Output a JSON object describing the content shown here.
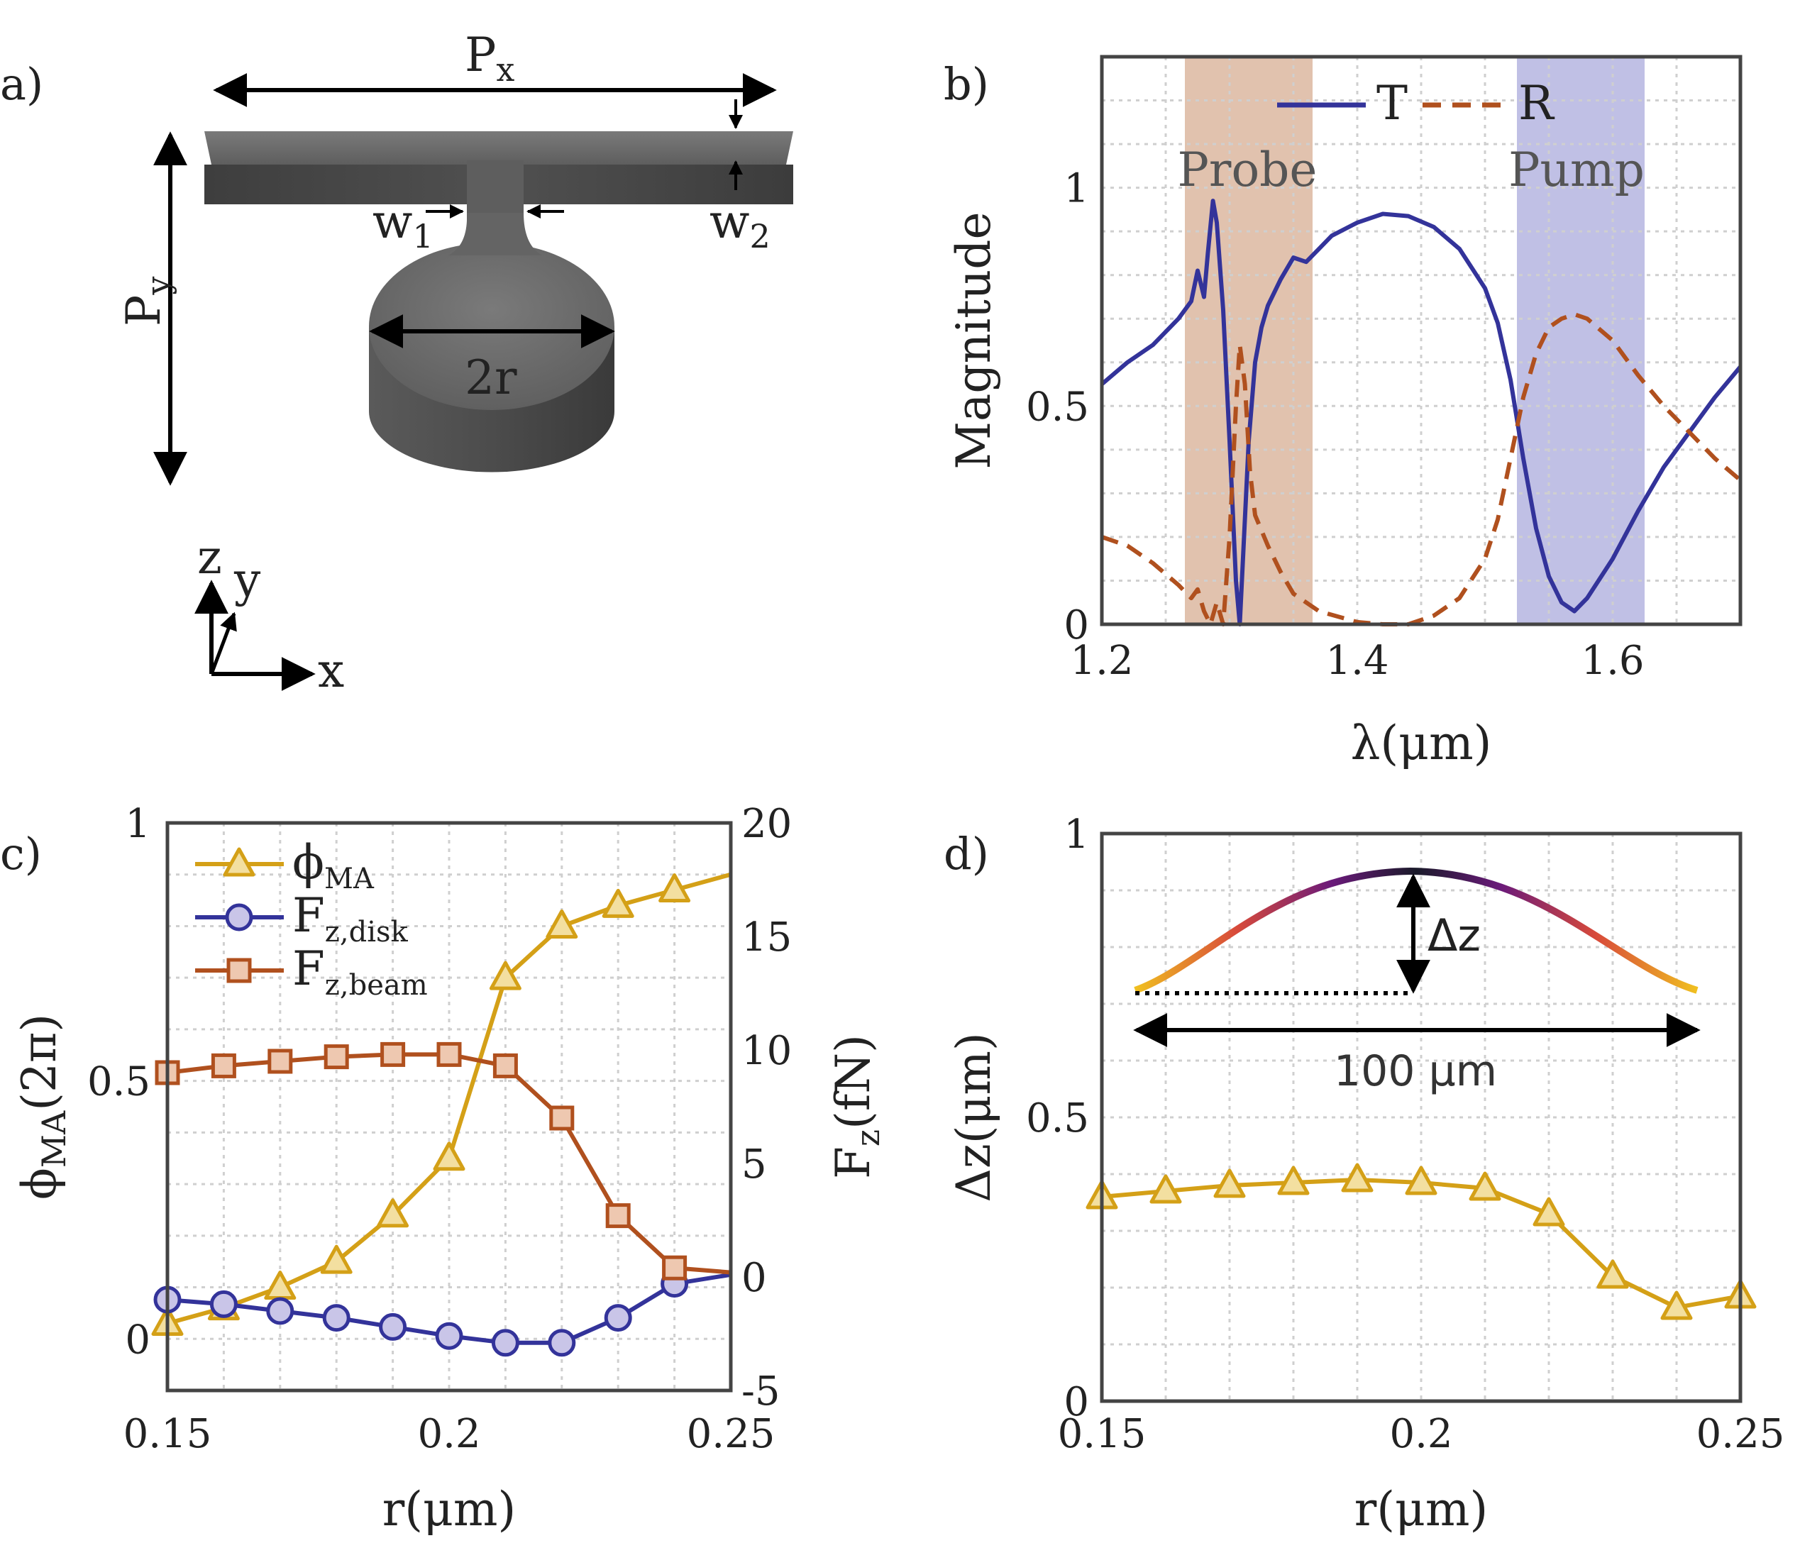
{
  "panel_a": {
    "label": "a)",
    "dims": {
      "px": "P",
      "px_sub": "x",
      "py": "P",
      "py_sub": "y",
      "w1": "w",
      "w1_sub": "1",
      "w2": "w",
      "w2_sub": "2",
      "diameter": "2r"
    },
    "axes": {
      "x": "x",
      "y": "y",
      "z": "z"
    },
    "colors": {
      "beam_top": "#6d6d6d",
      "beam_front": "#4a4a4a",
      "disk_top": "#6a6a6a",
      "disk_side": "#515151"
    }
  },
  "chart_data": [
    {
      "panel": "b)",
      "type": "line",
      "xlabel": "λ(μm)",
      "ylabel": "Magnitude",
      "xlim": [
        1.2,
        1.7
      ],
      "ylim": [
        0,
        1.3
      ],
      "xticks": [
        1.2,
        1.4,
        1.6
      ],
      "xtick_labels": [
        "1.2",
        "1.4",
        "1.6"
      ],
      "yticks": [
        0,
        0.5,
        1
      ],
      "ytick_labels": [
        "0",
        "0.5",
        "1"
      ],
      "grid": true,
      "legend_placement": "top-right",
      "bands": [
        {
          "name": "Probe",
          "x0": 1.265,
          "x1": 1.365,
          "color": "#c98f6c"
        },
        {
          "name": "Pump",
          "x0": 1.525,
          "x1": 1.625,
          "color": "#8c8cd0"
        }
      ],
      "series": [
        {
          "name": "T",
          "color": "#33339a",
          "style": "solid",
          "x": [
            1.2,
            1.22,
            1.24,
            1.25,
            1.26,
            1.27,
            1.275,
            1.28,
            1.283,
            1.287,
            1.29,
            1.295,
            1.3,
            1.305,
            1.308,
            1.311,
            1.315,
            1.32,
            1.325,
            1.33,
            1.34,
            1.35,
            1.36,
            1.37,
            1.38,
            1.4,
            1.42,
            1.44,
            1.46,
            1.48,
            1.5,
            1.51,
            1.52,
            1.53,
            1.54,
            1.55,
            1.56,
            1.57,
            1.58,
            1.6,
            1.62,
            1.64,
            1.66,
            1.68,
            1.7
          ],
          "y": [
            0.55,
            0.6,
            0.64,
            0.67,
            0.7,
            0.74,
            0.81,
            0.75,
            0.85,
            0.97,
            0.92,
            0.72,
            0.42,
            0.1,
            0.0,
            0.18,
            0.42,
            0.6,
            0.68,
            0.73,
            0.79,
            0.84,
            0.83,
            0.86,
            0.89,
            0.92,
            0.94,
            0.935,
            0.91,
            0.86,
            0.77,
            0.69,
            0.56,
            0.38,
            0.22,
            0.11,
            0.05,
            0.03,
            0.06,
            0.15,
            0.26,
            0.36,
            0.44,
            0.52,
            0.59
          ]
        },
        {
          "name": "R",
          "color": "#b0501e",
          "style": "dashed",
          "x": [
            1.2,
            1.22,
            1.24,
            1.26,
            1.27,
            1.275,
            1.28,
            1.285,
            1.29,
            1.295,
            1.3,
            1.305,
            1.308,
            1.312,
            1.316,
            1.32,
            1.33,
            1.34,
            1.35,
            1.37,
            1.4,
            1.42,
            1.44,
            1.46,
            1.48,
            1.5,
            1.51,
            1.52,
            1.53,
            1.54,
            1.55,
            1.56,
            1.57,
            1.58,
            1.6,
            1.62,
            1.64,
            1.66,
            1.68,
            1.7
          ],
          "y": [
            0.2,
            0.18,
            0.14,
            0.09,
            0.06,
            0.08,
            0.03,
            0.0,
            0.05,
            0.0,
            0.2,
            0.5,
            0.64,
            0.55,
            0.35,
            0.25,
            0.18,
            0.12,
            0.07,
            0.03,
            0.005,
            0.0,
            0.0,
            0.02,
            0.06,
            0.15,
            0.24,
            0.38,
            0.52,
            0.62,
            0.68,
            0.7,
            0.71,
            0.7,
            0.65,
            0.57,
            0.5,
            0.44,
            0.38,
            0.33
          ]
        }
      ]
    },
    {
      "panel": "c)",
      "type": "line",
      "xlabel": "r(μm)",
      "ylabel": "ϕMA(2π)",
      "ylabel_right": "Fz(fN)",
      "xlim": [
        0.15,
        0.25
      ],
      "ylim": [
        -0.1,
        1
      ],
      "ylim_right": [
        -5,
        20
      ],
      "xticks": [
        0.15,
        0.2,
        0.25
      ],
      "xtick_labels": [
        "0.15",
        "0.2",
        "0.25"
      ],
      "yticks": [
        0,
        0.5,
        1
      ],
      "ytick_labels": [
        "0",
        "0.5",
        "1"
      ],
      "yticks_right": [
        -5,
        0,
        5,
        10,
        15,
        20
      ],
      "ytick_labels_right": [
        "-5",
        "0",
        "5",
        "10",
        "15",
        "20"
      ],
      "grid": true,
      "legend_placement": "top-left",
      "categories": [
        0.15,
        0.16,
        0.17,
        0.18,
        0.19,
        0.2,
        0.21,
        0.22,
        0.23,
        0.24,
        0.25
      ],
      "series": [
        {
          "name": "ϕ",
          "sub": "MA",
          "axis": "left",
          "marker": "triangle",
          "color": "#d4a017",
          "fill": "#f3dfa0",
          "values": [
            0.03,
            0.06,
            0.1,
            0.15,
            0.24,
            0.35,
            0.7,
            0.8,
            0.84,
            0.87,
            0.9
          ],
          "markers": 10
        },
        {
          "name": "F",
          "sub": "z,disk",
          "axis": "right",
          "marker": "circle",
          "color": "#33339a",
          "fill": "#c9c5e8",
          "values": [
            -1.0,
            -1.2,
            -1.5,
            -1.8,
            -2.2,
            -2.6,
            -2.9,
            -2.9,
            -1.8,
            -0.3,
            0.1
          ],
          "markers": 10
        },
        {
          "name": "F",
          "sub": "z,beam",
          "axis": "right",
          "marker": "square",
          "color": "#b0501e",
          "fill": "#eec8b0",
          "values": [
            9.0,
            9.3,
            9.5,
            9.7,
            9.8,
            9.8,
            9.3,
            7.0,
            2.7,
            0.4,
            0.2
          ],
          "markers": 10
        }
      ]
    },
    {
      "panel": "d)",
      "type": "line",
      "xlabel": "r(μm)",
      "ylabel": "Δz(μm)",
      "xlim": [
        0.15,
        0.25
      ],
      "ylim": [
        0,
        1
      ],
      "xticks": [
        0.15,
        0.2,
        0.25
      ],
      "xtick_labels": [
        "0.15",
        "0.2",
        "0.25"
      ],
      "yticks": [
        0,
        0.5,
        1
      ],
      "ytick_labels": [
        "0",
        "0.5",
        "1"
      ],
      "grid": true,
      "categories": [
        0.15,
        0.16,
        0.17,
        0.18,
        0.19,
        0.2,
        0.21,
        0.22,
        0.23,
        0.24,
        0.25
      ],
      "series": [
        {
          "marker": "triangle",
          "color": "#d4a017",
          "fill": "#f3dfa0",
          "values": [
            0.36,
            0.37,
            0.38,
            0.385,
            0.39,
            0.385,
            0.375,
            0.33,
            0.22,
            0.165,
            0.185
          ]
        }
      ],
      "inset": {
        "dz_label": "Δz",
        "span_label": "100 μm",
        "gradient": [
          "#f0c020",
          "#c0304a",
          "#5a1a7a",
          "#1a1a2a"
        ]
      }
    }
  ]
}
